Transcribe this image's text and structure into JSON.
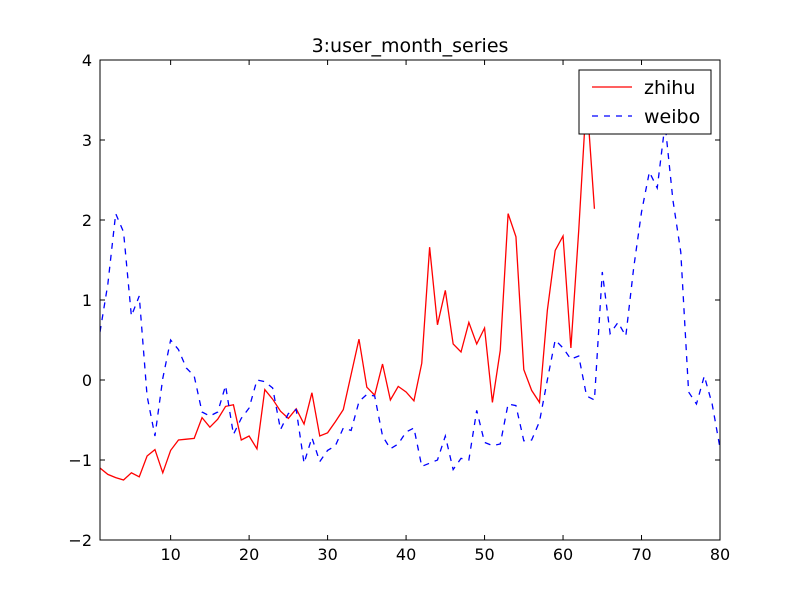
{
  "chart_data": {
    "type": "line",
    "title": "3:user_month_series",
    "xlabel": "",
    "ylabel": "",
    "xlim": [
      1,
      80
    ],
    "ylim": [
      -2,
      4
    ],
    "xticks": [
      10,
      20,
      30,
      40,
      50,
      60,
      70,
      80
    ],
    "yticks": [
      -2,
      -1,
      0,
      1,
      2,
      3,
      4
    ],
    "grid": false,
    "legend_position": "top-right",
    "series": [
      {
        "name": "zhihu",
        "color": "#ff0000",
        "style": "solid",
        "x": [
          1,
          2,
          3,
          4,
          5,
          6,
          7,
          8,
          9,
          10,
          11,
          12,
          13,
          14,
          15,
          16,
          17,
          18,
          19,
          20,
          21,
          22,
          23,
          24,
          25,
          26,
          27,
          28,
          29,
          30,
          31,
          32,
          33,
          34,
          35,
          36,
          37,
          38,
          39,
          40,
          41,
          42,
          43,
          44,
          45,
          46,
          47,
          48,
          49,
          50,
          51,
          52,
          53,
          54,
          55,
          56,
          57,
          58,
          59,
          60,
          61,
          62,
          63,
          64
        ],
        "y": [
          -1.1,
          -1.18,
          -1.22,
          -1.25,
          -1.16,
          -1.21,
          -0.95,
          -0.87,
          -1.16,
          -0.88,
          -0.75,
          -0.74,
          -0.73,
          -0.47,
          -0.59,
          -0.49,
          -0.33,
          -0.31,
          -0.75,
          -0.7,
          -0.86,
          -0.12,
          -0.24,
          -0.39,
          -0.48,
          -0.36,
          -0.55,
          -0.16,
          -0.7,
          -0.66,
          -0.52,
          -0.37,
          0.07,
          0.51,
          -0.09,
          -0.19,
          0.2,
          -0.25,
          -0.08,
          -0.15,
          -0.26,
          0.21,
          1.66,
          0.69,
          1.12,
          0.45,
          0.35,
          0.72,
          0.45,
          0.65,
          -0.28,
          0.37,
          2.08,
          1.79,
          0.13,
          -0.13,
          -0.28,
          0.87,
          1.62,
          1.8,
          0.4,
          1.87,
          3.55,
          2.14
        ]
      },
      {
        "name": "weibo",
        "color": "#0000ff",
        "style": "dashed",
        "x": [
          1,
          2,
          3,
          4,
          5,
          6,
          7,
          8,
          9,
          10,
          11,
          12,
          13,
          14,
          15,
          16,
          17,
          18,
          19,
          20,
          21,
          22,
          23,
          24,
          25,
          26,
          27,
          28,
          29,
          30,
          31,
          32,
          33,
          34,
          35,
          36,
          37,
          38,
          39,
          40,
          41,
          42,
          43,
          44,
          45,
          46,
          47,
          48,
          49,
          50,
          51,
          52,
          53,
          54,
          55,
          56,
          57,
          58,
          59,
          60,
          61,
          62,
          63,
          64,
          65,
          66,
          67,
          68,
          69,
          70,
          71,
          72,
          73,
          74,
          75,
          76,
          77,
          78,
          79,
          80
        ],
        "y": [
          0.6,
          1.2,
          2.08,
          1.85,
          0.8,
          1.05,
          -0.2,
          -0.7,
          0.02,
          0.5,
          0.38,
          0.15,
          0.05,
          -0.4,
          -0.45,
          -0.4,
          -0.07,
          -0.68,
          -0.48,
          -0.35,
          0.0,
          -0.02,
          -0.1,
          -0.62,
          -0.42,
          -0.37,
          -1.04,
          -0.72,
          -1.02,
          -0.88,
          -0.82,
          -0.6,
          -0.63,
          -0.27,
          -0.18,
          -0.2,
          -0.7,
          -0.86,
          -0.8,
          -0.65,
          -0.6,
          -1.08,
          -1.04,
          -1.0,
          -0.7,
          -1.12,
          -0.98,
          -1.0,
          -0.38,
          -0.78,
          -0.82,
          -0.8,
          -0.3,
          -0.32,
          -0.76,
          -0.75,
          -0.52,
          0.0,
          0.5,
          0.4,
          0.26,
          0.3,
          -0.2,
          -0.25,
          1.35,
          0.58,
          0.72,
          0.55,
          1.4,
          2.1,
          2.6,
          2.4,
          3.2,
          2.25,
          1.6,
          -0.15,
          -0.3,
          0.05,
          -0.3,
          -0.85
        ]
      }
    ]
  }
}
